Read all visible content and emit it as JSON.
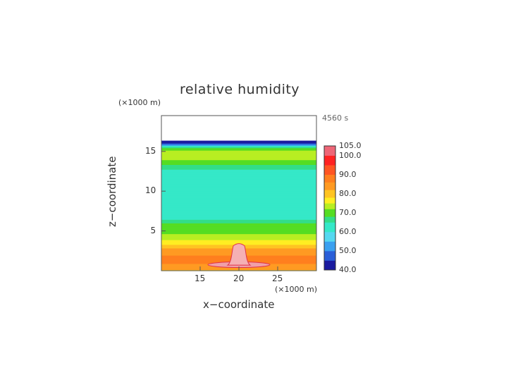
{
  "chart_data": {
    "type": "heatmap",
    "title": "relative humidity",
    "xlabel": "x−coordinate",
    "ylabel": "z−coordinate",
    "x_unit": "(×1000 m)",
    "z_unit": "(×1000 m)",
    "time_label": "4560 s",
    "xlim": [
      10,
      30
    ],
    "ylim": [
      0,
      19.5
    ],
    "x_ticks": [
      15,
      20,
      25
    ],
    "y_ticks": [
      5,
      10,
      15
    ],
    "colorbar": {
      "min": 40,
      "max": 105,
      "tick_values": [
        40,
        50,
        60,
        70,
        80,
        90,
        100,
        105
      ],
      "tick_labels": [
        "40.0",
        "50.0",
        "60.0",
        "70.0",
        "80.0",
        "90.0",
        "100.0",
        "105.0"
      ]
    },
    "z_profile": [
      {
        "z": 0.0,
        "rh": 80
      },
      {
        "z": 0.5,
        "rh": 85
      },
      {
        "z": 1.5,
        "rh": 88
      },
      {
        "z": 2.5,
        "rh": 84
      },
      {
        "z": 3.5,
        "rh": 77
      },
      {
        "z": 4.2,
        "rh": 73
      },
      {
        "z": 5.0,
        "rh": 71
      },
      {
        "z": 6.0,
        "rh": 68
      },
      {
        "z": 6.8,
        "rh": 62
      },
      {
        "z": 8.0,
        "rh": 60
      },
      {
        "z": 10.0,
        "rh": 60
      },
      {
        "z": 12.0,
        "rh": 61
      },
      {
        "z": 13.0,
        "rh": 66
      },
      {
        "z": 13.5,
        "rh": 69
      },
      {
        "z": 14.0,
        "rh": 72
      },
      {
        "z": 15.0,
        "rh": 75
      },
      {
        "z": 15.6,
        "rh": 65
      },
      {
        "z": 15.9,
        "rh": 50
      },
      {
        "z": 16.1,
        "rh": 40
      },
      {
        "z": 16.3,
        "rh": null
      }
    ],
    "cloud": {
      "x_center": 20,
      "z_top": 3.4,
      "half_width": 0.9,
      "base_half_width": 4.0,
      "rh": 103
    }
  }
}
